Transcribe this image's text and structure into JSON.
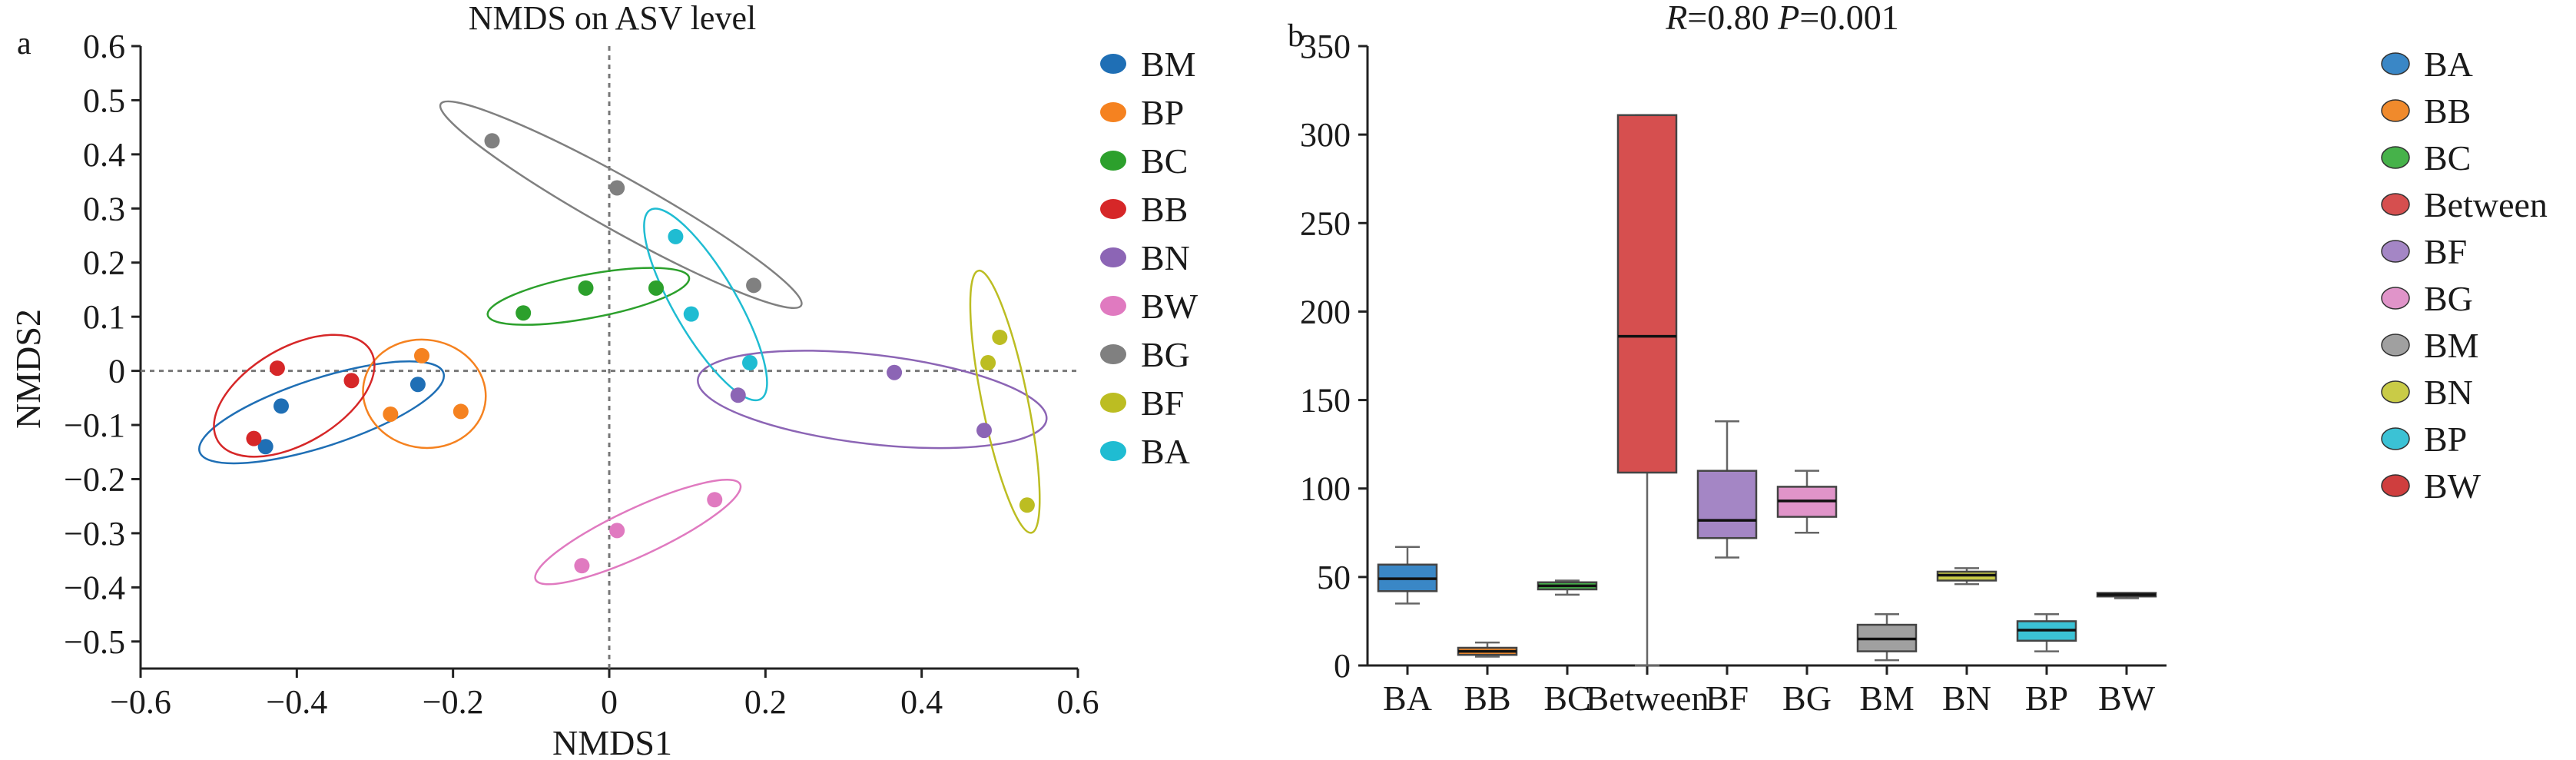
{
  "chart_data": [
    {
      "panel_label": "a",
      "type": "scatter",
      "title": "NMDS on ASV level",
      "xlabel": "NMDS1",
      "ylabel": "NMDS2",
      "xlim": [
        -0.6,
        0.6
      ],
      "ylim": [
        -0.55,
        0.6
      ],
      "xticks": [
        "−0.6",
        "−0.4",
        "−0.2",
        "0",
        "0.2",
        "0.4",
        "0.6"
      ],
      "yticks": [
        "0.6",
        "0.5",
        "0.4",
        "0.3",
        "0.2",
        "0.1",
        "0",
        "−0.1",
        "−0.2",
        "−0.3",
        "−0.4",
        "−0.5"
      ],
      "grid": false,
      "reference_lines": "dotted lines at x = 0 and y = 0",
      "legend_position": "right",
      "series": [
        {
          "name": "BM",
          "color": "#1f6fb5",
          "points": [
            [
              -0.245,
              -0.025
            ],
            [
              -0.42,
              -0.065
            ],
            [
              -0.44,
              -0.14
            ]
          ]
        },
        {
          "name": "BP",
          "color": "#f58220",
          "points": [
            [
              -0.24,
              0.028
            ],
            [
              -0.28,
              -0.08
            ],
            [
              -0.19,
              -0.075
            ]
          ]
        },
        {
          "name": "BC",
          "color": "#2ca02c",
          "points": [
            [
              -0.11,
              0.107
            ],
            [
              -0.03,
              0.153
            ],
            [
              0.06,
              0.153
            ]
          ]
        },
        {
          "name": "BB",
          "color": "#d62728",
          "points": [
            [
              -0.425,
              0.005
            ],
            [
              -0.33,
              -0.018
            ],
            [
              -0.455,
              -0.125
            ]
          ]
        },
        {
          "name": "BN",
          "color": "#8c65b5",
          "points": [
            [
              0.165,
              -0.045
            ],
            [
              0.365,
              -0.003
            ],
            [
              0.48,
              -0.11
            ]
          ]
        },
        {
          "name": "BW",
          "color": "#e07ac0",
          "points": [
            [
              -0.035,
              -0.36
            ],
            [
              0.01,
              -0.295
            ],
            [
              0.135,
              -0.238
            ]
          ]
        },
        {
          "name": "BG",
          "color": "#808080",
          "points": [
            [
              -0.15,
              0.425
            ],
            [
              0.01,
              0.338
            ],
            [
              0.185,
              0.158
            ]
          ]
        },
        {
          "name": "BF",
          "color": "#bcbd22",
          "points": [
            [
              0.485,
              0.015
            ],
            [
              0.5,
              0.062
            ],
            [
              0.535,
              -0.248
            ]
          ]
        },
        {
          "name": "BA",
          "color": "#1fbcd2",
          "points": [
            [
              0.085,
              0.248
            ],
            [
              0.105,
              0.105
            ],
            [
              0.18,
              0.015
            ]
          ]
        }
      ]
    },
    {
      "panel_label": "b",
      "type": "box",
      "title": "R=0.80 P=0.001",
      "title_parts": {
        "r_sym": "R",
        "r_val": "=0.80 ",
        "p_sym": "P",
        "p_val": "=0.001"
      },
      "xlabel": "",
      "ylabel": "",
      "ylim": [
        0,
        350
      ],
      "yticks": [
        "0",
        "50",
        "100",
        "150",
        "200",
        "250",
        "300",
        "350"
      ],
      "grid": false,
      "legend_position": "right",
      "categories": [
        "BA",
        "BB",
        "BC",
        "Between",
        "BF",
        "BG",
        "BM",
        "BN",
        "BP",
        "BW"
      ],
      "boxes": [
        {
          "name": "BA",
          "color": "#3a87c6",
          "min": 35,
          "q1": 42,
          "median": 49,
          "q3": 57,
          "max": 67
        },
        {
          "name": "BB",
          "color": "#f08a2c",
          "min": 5,
          "q1": 6,
          "median": 8,
          "q3": 10,
          "max": 13
        },
        {
          "name": "BC",
          "color": "#46b24a",
          "min": 40,
          "q1": 43,
          "median": 45,
          "q3": 47,
          "max": 48
        },
        {
          "name": "Between",
          "color": "#d64f4f",
          "min": 0,
          "q1": 109,
          "median": 186,
          "q3": 311,
          "max": 311
        },
        {
          "name": "BF",
          "color": "#a486c5",
          "min": 61,
          "q1": 72,
          "median": 82,
          "q3": 110,
          "max": 138
        },
        {
          "name": "BG",
          "color": "#e094c9",
          "min": 75,
          "q1": 84,
          "median": 93,
          "q3": 101,
          "max": 110
        },
        {
          "name": "BM",
          "color": "#a0a0a0",
          "min": 3,
          "q1": 8,
          "median": 15,
          "q3": 23,
          "max": 29
        },
        {
          "name": "BN",
          "color": "#c9cb47",
          "min": 46,
          "q1": 48,
          "median": 51,
          "q3": 53,
          "max": 55
        },
        {
          "name": "BP",
          "color": "#3bc2d5",
          "min": 8,
          "q1": 14,
          "median": 20,
          "q3": 25,
          "max": 29
        },
        {
          "name": "BW",
          "color": "#cf3e3e",
          "min": 38,
          "q1": 39,
          "median": 40,
          "q3": 41,
          "max": 41
        }
      ]
    }
  ]
}
